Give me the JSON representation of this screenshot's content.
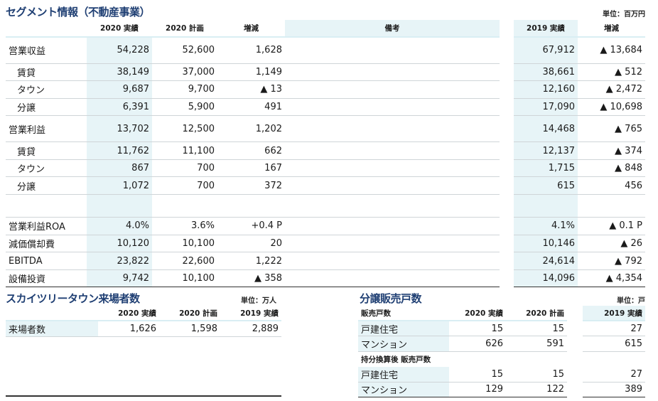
{
  "segment": {
    "title": "セグメント情報（不動産事業）",
    "unit": "単位：百万円",
    "headers": [
      "",
      "2020 実績",
      "2020 計画",
      "増減",
      "備考",
      "2019 実績",
      "増減"
    ],
    "rows": [
      {
        "label": "営業収益",
        "indent": false,
        "tall": true,
        "v": [
          "54,228",
          "52,600",
          "1,628",
          "",
          "67,912",
          "▲ 13,684"
        ]
      },
      {
        "label": "賃貸",
        "indent": true,
        "tall": false,
        "v": [
          "38,149",
          "37,000",
          "1,149",
          "",
          "38,661",
          "▲ 512"
        ]
      },
      {
        "label": "タウン",
        "indent": true,
        "tall": false,
        "v": [
          "9,687",
          "9,700",
          "▲ 13",
          "",
          "12,160",
          "▲ 2,472"
        ]
      },
      {
        "label": "分譲",
        "indent": true,
        "tall": false,
        "v": [
          "6,391",
          "5,900",
          "491",
          "",
          "17,090",
          "▲ 10,698"
        ]
      },
      {
        "label": "営業利益",
        "indent": false,
        "tall": true,
        "v": [
          "13,702",
          "12,500",
          "1,202",
          "",
          "14,468",
          "▲ 765"
        ]
      },
      {
        "label": "賃貸",
        "indent": true,
        "tall": false,
        "v": [
          "11,762",
          "11,100",
          "662",
          "",
          "12,137",
          "▲ 374"
        ]
      },
      {
        "label": "タウン",
        "indent": true,
        "tall": false,
        "v": [
          "867",
          "700",
          "167",
          "",
          "1,715",
          "▲ 848"
        ]
      },
      {
        "label": "分譲",
        "indent": true,
        "tall": false,
        "v": [
          "1,072",
          "700",
          "372",
          "",
          "615",
          "456"
        ]
      },
      {
        "label": "",
        "indent": false,
        "blank": true,
        "v": [
          "",
          "",
          "",
          "",
          "",
          ""
        ]
      },
      {
        "label": "営業利益ROA",
        "indent": false,
        "tall": false,
        "v": [
          "4.0%",
          "3.6%",
          "+0.4 P",
          "",
          "4.1%",
          "▲ 0.1 P"
        ]
      },
      {
        "label": "減価償却費",
        "indent": false,
        "tall": false,
        "v": [
          "10,120",
          "10,100",
          "20",
          "",
          "10,146",
          "▲ 26"
        ]
      },
      {
        "label": "EBITDA",
        "indent": false,
        "tall": false,
        "v": [
          "23,822",
          "22,600",
          "1,222",
          "",
          "24,614",
          "▲ 792"
        ]
      },
      {
        "label": "設備投資",
        "indent": false,
        "tall": false,
        "v": [
          "9,742",
          "10,100",
          "▲ 358",
          "",
          "14,096",
          "▲ 4,354"
        ]
      }
    ]
  },
  "skytree": {
    "title": "スカイツリータウン来場者数",
    "unit": "単位：万人",
    "headers": [
      "",
      "2020 実績",
      "2020 計画",
      "2019 実績"
    ],
    "row": {
      "label": "来場者数",
      "v": [
        "1,626",
        "1,598",
        "2,889"
      ]
    }
  },
  "sales": {
    "title": "分譲販売戸数",
    "unit": "単位：戸",
    "headers": [
      "販売戸数",
      "2020 実績",
      "2020 計画",
      "2019 実績"
    ],
    "group1": [
      {
        "label": "戸建住宅",
        "v": [
          "15",
          "15",
          "27"
        ]
      },
      {
        "label": "マンション",
        "v": [
          "626",
          "591",
          "615"
        ]
      }
    ],
    "subheader": "持分換算後 販売戸数",
    "group2": [
      {
        "label": "戸建住宅",
        "v": [
          "15",
          "15",
          "27"
        ]
      },
      {
        "label": "マンション",
        "v": [
          "129",
          "122",
          "389"
        ]
      }
    ]
  }
}
